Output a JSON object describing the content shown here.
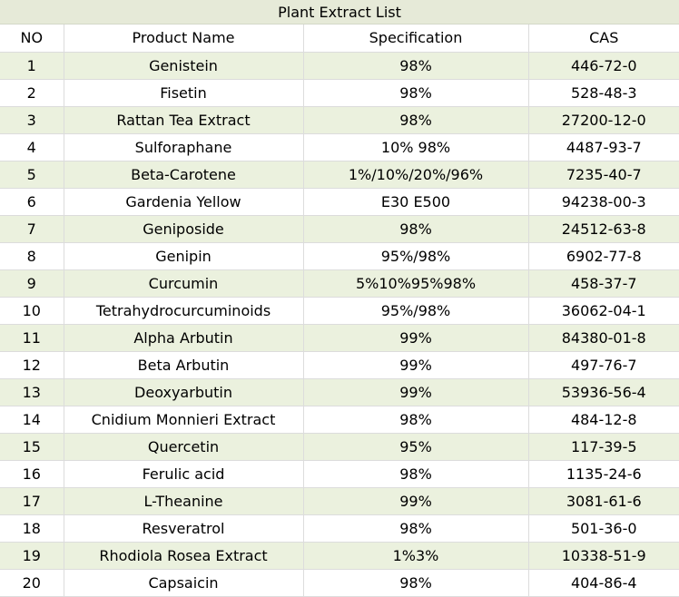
{
  "title": "Plant Extract List",
  "columns": [
    "NO",
    "Product Name",
    "Specification",
    "CAS"
  ],
  "colors": {
    "stripe": "#ebf1de",
    "title_bg": "#e6ead8",
    "grid": "#dcdcdc"
  },
  "rows": [
    {
      "no": "1",
      "name": "Genistein",
      "spec": "98%",
      "cas": "446-72-0"
    },
    {
      "no": "2",
      "name": "Fisetin",
      "spec": "98%",
      "cas": "528-48-3"
    },
    {
      "no": "3",
      "name": "Rattan Tea Extract",
      "spec": "98%",
      "cas": "27200-12-0"
    },
    {
      "no": "4",
      "name": "Sulforaphane",
      "spec": "10% 98%",
      "cas": "4487-93-7"
    },
    {
      "no": "5",
      "name": "Beta-Carotene",
      "spec": "1%/10%/20%/96%",
      "cas": "7235-40-7"
    },
    {
      "no": "6",
      "name": "Gardenia Yellow",
      "spec": "E30 E500",
      "cas": "94238-00-3"
    },
    {
      "no": "7",
      "name": "Geniposide",
      "spec": "98%",
      "cas": "24512-63-8"
    },
    {
      "no": "8",
      "name": "Genipin",
      "spec": "95%/98%",
      "cas": "6902-77-8"
    },
    {
      "no": "9",
      "name": "Curcumin",
      "spec": "5%10%95%98%",
      "cas": "458-37-7"
    },
    {
      "no": "10",
      "name": "Tetrahydrocurcuminoids",
      "spec": "95%/98%",
      "cas": "36062-04-1"
    },
    {
      "no": "11",
      "name": "Alpha Arbutin",
      "spec": "99%",
      "cas": "84380-01-8"
    },
    {
      "no": "12",
      "name": "Beta Arbutin",
      "spec": "99%",
      "cas": "497-76-7"
    },
    {
      "no": "13",
      "name": "Deoxyarbutin",
      "spec": "99%",
      "cas": "53936-56-4"
    },
    {
      "no": "14",
      "name": "Cnidium Monnieri Extract",
      "spec": "98%",
      "cas": "484-12-8"
    },
    {
      "no": "15",
      "name": "Quercetin",
      "spec": "95%",
      "cas": "117-39-5"
    },
    {
      "no": "16",
      "name": "Ferulic acid",
      "spec": "98%",
      "cas": "1135-24-6"
    },
    {
      "no": "17",
      "name": "L-Theanine",
      "spec": "99%",
      "cas": "3081-61-6"
    },
    {
      "no": "18",
      "name": "Resveratrol",
      "spec": "98%",
      "cas": "501-36-0"
    },
    {
      "no": "19",
      "name": "Rhodiola Rosea Extract",
      "spec": "1%3%",
      "cas": "10338-51-9"
    },
    {
      "no": "20",
      "name": "Capsaicin",
      "spec": "98%",
      "cas": "404-86-4"
    }
  ]
}
